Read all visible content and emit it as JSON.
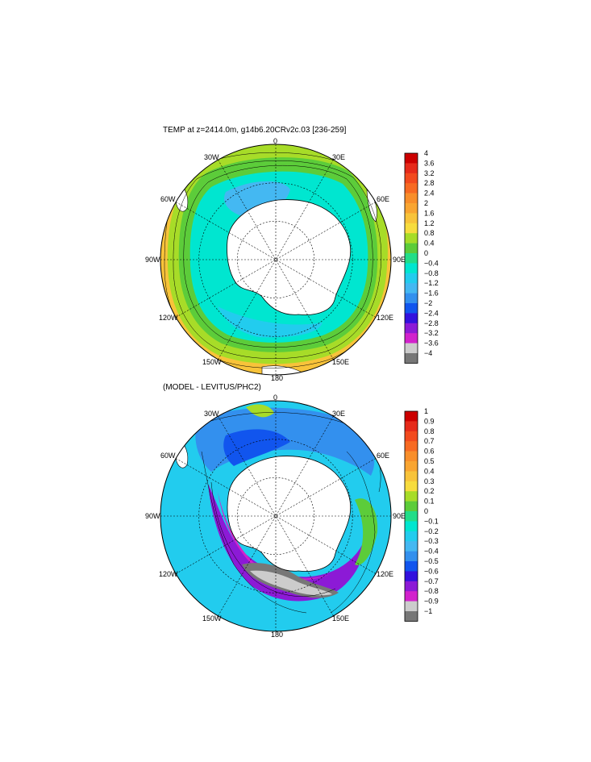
{
  "top_panel": {
    "title": "TEMP at z=2414.0m, g14b6.20CRv2c.03 [236-259]",
    "lon_labels": {
      "top": "0",
      "tr": "30E",
      "rt": "60E",
      "r": "90E",
      "rb": "120E",
      "br": "150E",
      "b": "180",
      "bl": "150W",
      "lb": "120W",
      "l": "90W",
      "lt": "60W",
      "tl": "30W"
    },
    "colorbar": {
      "labels": [
        "4",
        "3.6",
        "3.2",
        "2.8",
        "2.4",
        "2",
        "1.6",
        "1.2",
        "0.8",
        "0.4",
        "0",
        "−0.4",
        "−0.8",
        "−1.2",
        "−1.6",
        "−2",
        "−2.4",
        "−2.8",
        "−3.2",
        "−3.6",
        "−4"
      ],
      "colors": [
        "#cc0000",
        "#e62a1a",
        "#f24a1e",
        "#f76a22",
        "#f88e2a",
        "#f9a531",
        "#f8c33a",
        "#f7dc3e",
        "#a7dc28",
        "#5ccc3a",
        "#22dd88",
        "#00e6d0",
        "#22ccee",
        "#44b8f2",
        "#3390ee",
        "#1155ee",
        "#3311dd",
        "#8c1ad6",
        "#d222cc",
        "#cccccc",
        "#777777"
      ]
    }
  },
  "bottom_panel": {
    "title": "(MODEL - LEVITUS/PHC2)",
    "lon_labels": {
      "top": "0",
      "tr": "30E",
      "rt": "60E",
      "r": "90E",
      "rb": "120E",
      "br": "150E",
      "b": "180",
      "bl": "150W",
      "lb": "120W",
      "l": "90W",
      "lt": "60W",
      "tl": "30W"
    },
    "colorbar": {
      "labels": [
        "1",
        "0.9",
        "0.8",
        "0.7",
        "0.6",
        "0.5",
        "0.4",
        "0.3",
        "0.2",
        "0.1",
        "0",
        "−0.1",
        "−0.2",
        "−0.3",
        "−0.4",
        "−0.5",
        "−0.6",
        "−0.7",
        "−0.8",
        "−0.9",
        "−1"
      ],
      "colors": [
        "#cc0000",
        "#e62a1a",
        "#f24a1e",
        "#f76a22",
        "#f88e2a",
        "#f9a531",
        "#f8c33a",
        "#f7dc3e",
        "#a7dc28",
        "#5ccc3a",
        "#22dd88",
        "#00e6d0",
        "#22ccee",
        "#44b8f2",
        "#3390ee",
        "#1155ee",
        "#3311dd",
        "#8c1ad6",
        "#d222cc",
        "#cccccc",
        "#777777"
      ]
    }
  }
}
